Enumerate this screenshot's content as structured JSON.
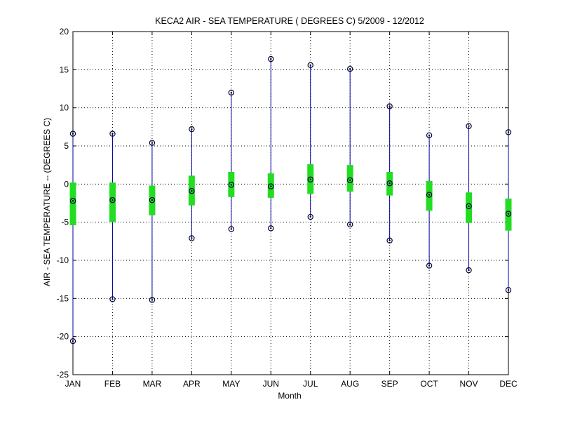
{
  "chart_data": {
    "type": "box",
    "title": "KECA2  AIR - SEA TEMPERATURE ( DEGREES C) 5/2009 - 12/2012",
    "xlabel": "Month",
    "ylabel": "AIR - SEA TEMPERATURE -- (DEGREES C)",
    "categories": [
      "JAN",
      "FEB",
      "MAR",
      "APR",
      "MAY",
      "JUN",
      "JUL",
      "AUG",
      "SEP",
      "OCT",
      "NOV",
      "DEC"
    ],
    "ylim": [
      -25,
      20
    ],
    "yticks": [
      -25,
      -20,
      -15,
      -10,
      -5,
      0,
      5,
      10,
      15,
      20
    ],
    "grid": true,
    "series": [
      {
        "min": [
          -20.6,
          -15.1,
          -15.2,
          -7.1,
          -5.9,
          -5.8,
          -4.3,
          -5.3,
          -7.4,
          -10.7,
          -11.3,
          -13.9
        ],
        "q1": [
          -5.4,
          -5.0,
          -4.1,
          -2.8,
          -1.7,
          -1.8,
          -1.3,
          -1.0,
          -1.5,
          -3.5,
          -5.1,
          -6.1
        ],
        "median": [
          -2.2,
          -2.1,
          -2.1,
          -0.9,
          -0.1,
          -0.3,
          0.6,
          0.5,
          0.1,
          -1.4,
          -2.9,
          -3.9
        ],
        "q3": [
          0.2,
          0.2,
          -0.2,
          1.1,
          1.6,
          1.4,
          2.6,
          2.5,
          1.6,
          0.4,
          -1.1,
          -1.9
        ],
        "max": [
          6.6,
          6.6,
          5.4,
          7.2,
          12.0,
          16.4,
          15.6,
          15.1,
          10.2,
          6.4,
          7.6,
          6.8
        ]
      }
    ],
    "colors": {
      "whisker": "#0000a0",
      "box": "#22dd22",
      "marker": "#000033",
      "grid": "#000000",
      "axis": "#000000"
    }
  }
}
